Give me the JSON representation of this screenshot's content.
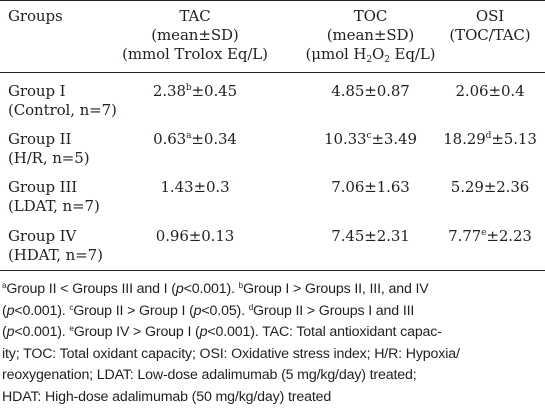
{
  "table": {
    "headers": {
      "groups": "Groups",
      "tac": {
        "line1": "TAC",
        "line2": "(mean±SD)",
        "line3": "(mmol Trolox Eq/L)"
      },
      "toc": {
        "line1": "TOC",
        "line2": "(mean±SD)",
        "line3_pre": "(μmol H",
        "line3_sub1": "2",
        "line3_mid": "O",
        "line3_sub2": "2",
        "line3_post": " Eq/L)"
      },
      "osi": {
        "line1": "OSI",
        "line2": "(TOC/TAC)"
      }
    },
    "rows": [
      {
        "group_name": "Group I",
        "group_desc": "(Control, n=7)",
        "tac": {
          "pre": "2.38",
          "sup": "b",
          "post": "±0.45"
        },
        "toc": {
          "pre": "4.85±0.87",
          "sup": "",
          "post": ""
        },
        "osi": {
          "pre": "2.06±0.4",
          "sup": "",
          "post": ""
        }
      },
      {
        "group_name": "Group II",
        "group_desc": "(H/R, n=5)",
        "tac": {
          "pre": "0.63",
          "sup": "a",
          "post": "±0.34"
        },
        "toc": {
          "pre": "10.33",
          "sup": "c",
          "post": "±3.49"
        },
        "osi": {
          "pre": "18.29",
          "sup": "d",
          "post": "±5.13"
        }
      },
      {
        "group_name": "Group III",
        "group_desc": "(LDAT, n=7)",
        "tac": {
          "pre": "1.43±0.3",
          "sup": "",
          "post": ""
        },
        "toc": {
          "pre": "7.06±1.63",
          "sup": "",
          "post": ""
        },
        "osi": {
          "pre": "5.29±2.36",
          "sup": "",
          "post": ""
        }
      },
      {
        "group_name": "Group IV",
        "group_desc": "(HDAT, n=7)",
        "tac": {
          "pre": "0.96±0.13",
          "sup": "",
          "post": ""
        },
        "toc": {
          "pre": "7.45±2.31",
          "sup": "",
          "post": ""
        },
        "osi": {
          "pre": "7.77",
          "sup": "e",
          "post": "±2.23"
        }
      }
    ]
  },
  "footnote": {
    "l1": {
      "sup_a": "a",
      "t1": "Group II < Groups III and I (",
      "p": "p",
      "t2": "<0.001). ",
      "sup_b": "b",
      "t3": "Group I > Groups II, III, and IV"
    },
    "l2": {
      "t0": "(",
      "p": "p",
      "t1": "<0.001). ",
      "sup_c": "c",
      "t2": "Group II > Group I (",
      "p2": "p",
      "t3": "<0.05). ",
      "sup_d": "d",
      "t4": "Group II > Groups I and III"
    },
    "l3": {
      "t0": "(",
      "p": "p",
      "t1": "<0.001). ",
      "sup_e": "e",
      "t2": "Group IV > Group I (",
      "p2": "p",
      "t3": "<0.001). TAC: Total antioxidant capac-"
    },
    "l4": "ity; TOC: Total oxidant capacity; OSI: Oxidative stress index; H/R: Hypoxia/",
    "l5": "reoxygenation; LDAT: Low-dose adalimumab (5 mg/kg/day) treated;",
    "l6": "HDAT: High-dose adalimumab (50 mg/kg/day) treated"
  }
}
